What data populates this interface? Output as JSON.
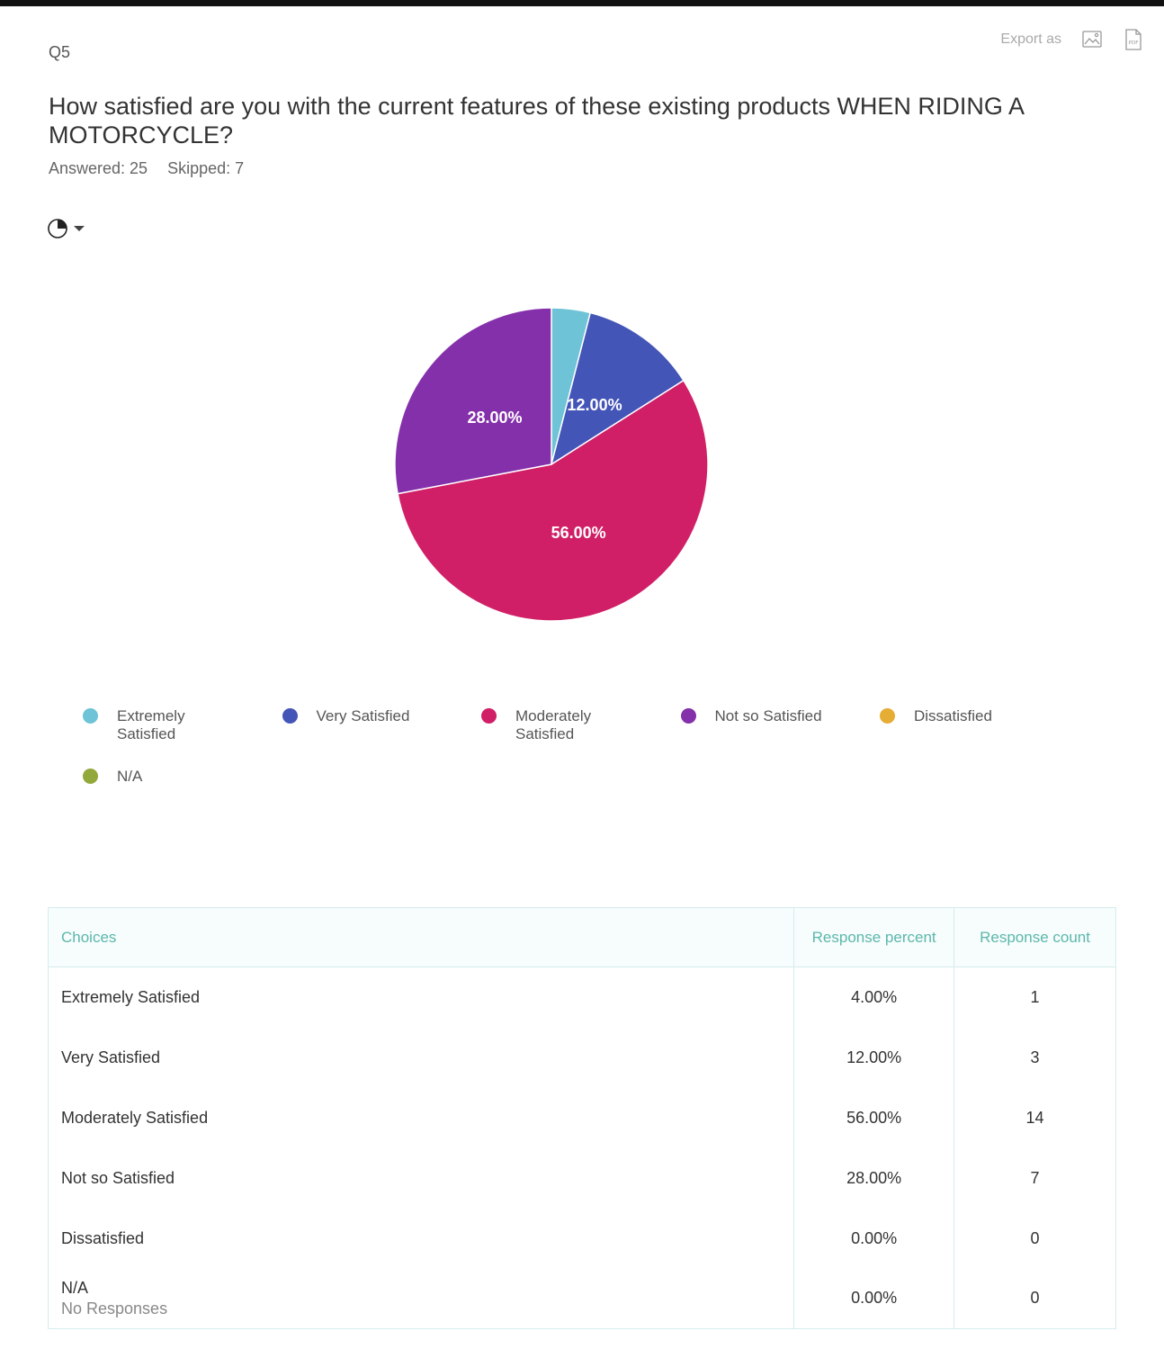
{
  "header": {
    "question_number": "Q5",
    "question_text": "How satisfied are you with the current features of these existing products WHEN RIDING A MOTORCYCLE?",
    "answered": "Answered: 25",
    "skipped": "Skipped: 7",
    "export_label": "Export as",
    "export_pdf_text": "PDF"
  },
  "chart_data": {
    "type": "pie",
    "categories": [
      "Extremely Satisfied",
      "Very Satisfied",
      "Moderately Satisfied",
      "Not so Satisfied",
      "Dissatisfied",
      "N/A"
    ],
    "values": [
      4.0,
      12.0,
      56.0,
      28.0,
      0.0,
      0.0
    ],
    "slice_labels": [
      "",
      "12.00%",
      "56.00%",
      "28.00%",
      "",
      ""
    ],
    "colors": [
      "#6ec3d6",
      "#4455b8",
      "#d01f66",
      "#8530ab",
      "#e6ad35",
      "#93a83a"
    ],
    "legend_position": "bottom"
  },
  "table": {
    "headers": {
      "choices": "Choices",
      "percent": "Response percent",
      "count": "Response count"
    },
    "rows": [
      {
        "choice": "Extremely Satisfied",
        "percent": "4.00%",
        "count": "1",
        "note": ""
      },
      {
        "choice": "Very Satisfied",
        "percent": "12.00%",
        "count": "3",
        "note": ""
      },
      {
        "choice": "Moderately Satisfied",
        "percent": "56.00%",
        "count": "14",
        "note": ""
      },
      {
        "choice": "Not so Satisfied",
        "percent": "28.00%",
        "count": "7",
        "note": ""
      },
      {
        "choice": "Dissatisfied",
        "percent": "0.00%",
        "count": "0",
        "note": ""
      },
      {
        "choice": "N/A",
        "percent": "0.00%",
        "count": "0",
        "note": "No Responses"
      }
    ]
  }
}
